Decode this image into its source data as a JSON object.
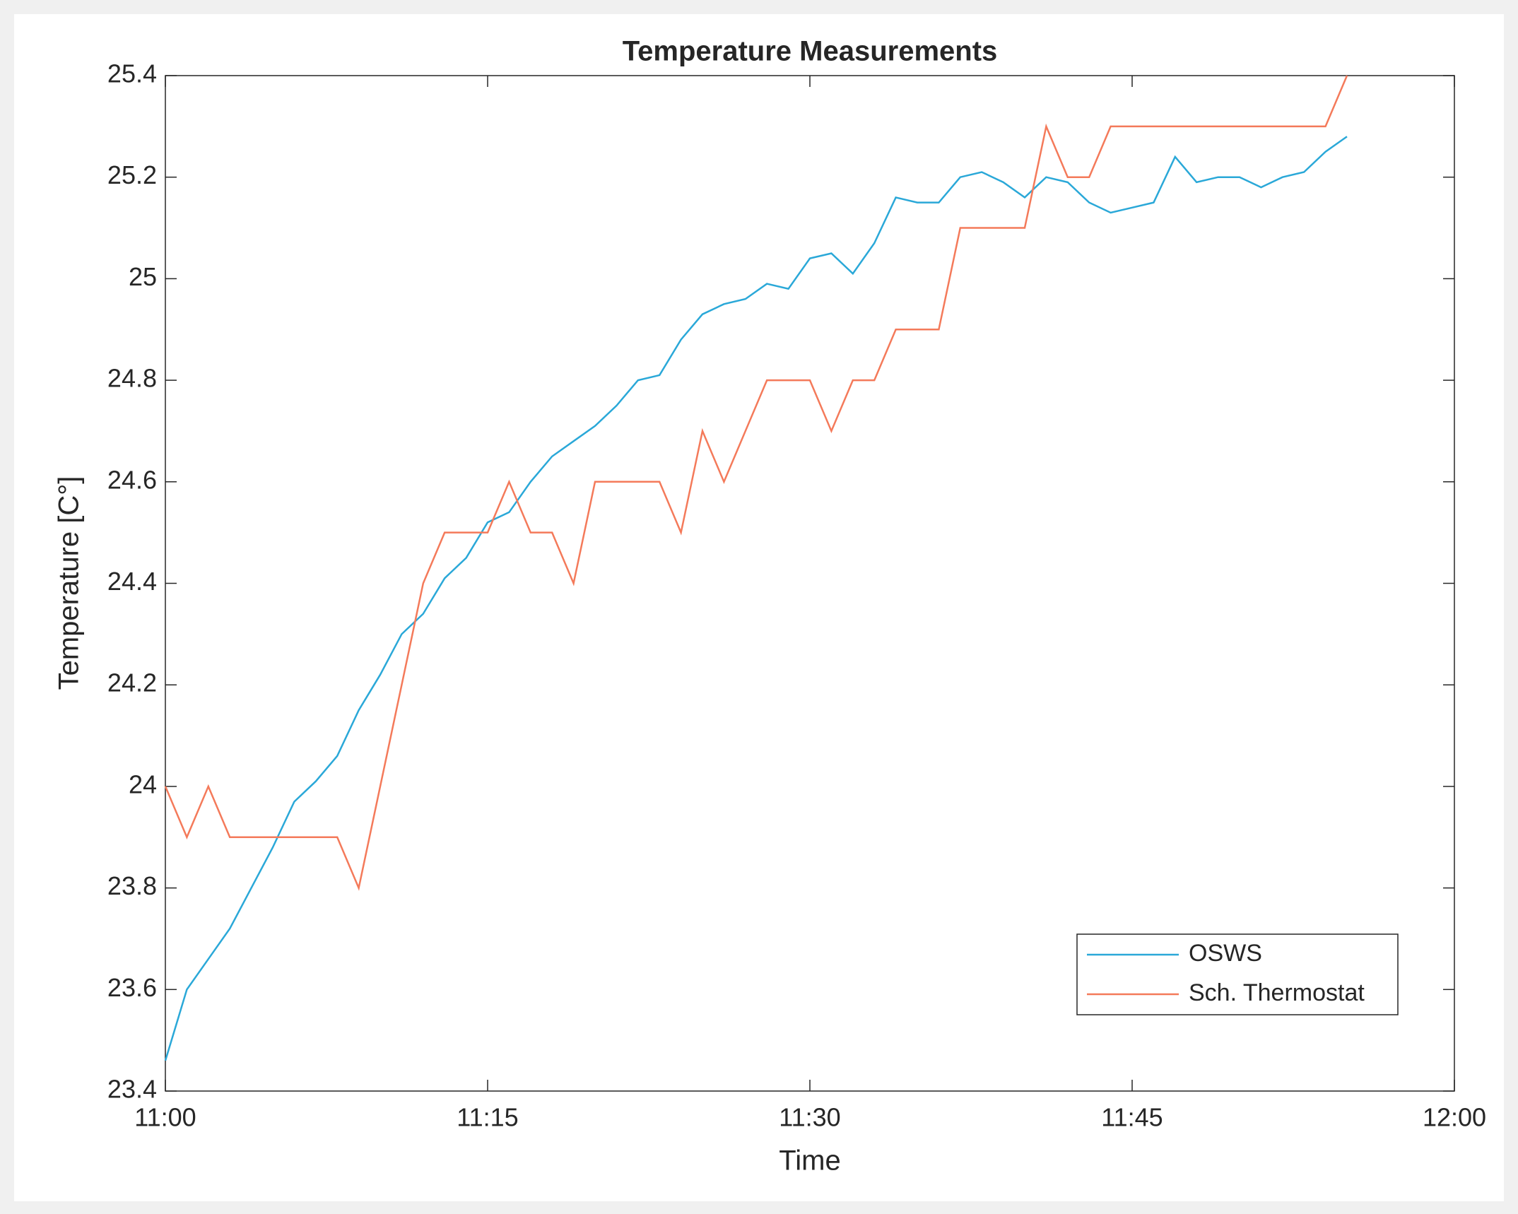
{
  "chart_data": {
    "type": "line",
    "title": "Temperature Measurements",
    "xlabel": "Time",
    "ylabel": "Temperature [C°]",
    "x": [
      "11:00",
      "11:01",
      "11:02",
      "11:03",
      "11:04",
      "11:05",
      "11:06",
      "11:07",
      "11:08",
      "11:09",
      "11:10",
      "11:11",
      "11:12",
      "11:13",
      "11:14",
      "11:15",
      "11:16",
      "11:17",
      "11:18",
      "11:19",
      "11:20",
      "11:21",
      "11:22",
      "11:23",
      "11:24",
      "11:25",
      "11:26",
      "11:27",
      "11:28",
      "11:29",
      "11:30",
      "11:31",
      "11:32",
      "11:33",
      "11:34",
      "11:35",
      "11:36",
      "11:37",
      "11:38",
      "11:39",
      "11:40",
      "11:41",
      "11:42",
      "11:43",
      "11:44",
      "11:45",
      "11:46",
      "11:47",
      "11:48",
      "11:49",
      "11:50",
      "11:51",
      "11:52",
      "11:53",
      "11:54",
      "11:55"
    ],
    "series": [
      {
        "name": "OSWS",
        "color": "#2aa8d8",
        "values": [
          23.46,
          23.6,
          23.66,
          23.72,
          23.8,
          23.88,
          23.97,
          24.01,
          24.06,
          24.15,
          24.22,
          24.3,
          24.34,
          24.41,
          24.45,
          24.52,
          24.54,
          24.6,
          24.65,
          24.68,
          24.71,
          24.75,
          24.8,
          24.81,
          24.88,
          24.93,
          24.95,
          24.96,
          24.99,
          24.98,
          25.04,
          25.05,
          25.01,
          25.07,
          25.16,
          25.15,
          25.15,
          25.2,
          25.21,
          25.19,
          25.16,
          25.2,
          25.19,
          25.15,
          25.13,
          25.14,
          25.15,
          25.24,
          25.19,
          25.2,
          25.2,
          25.18,
          25.2,
          25.21,
          25.25,
          25.28
        ]
      },
      {
        "name": "Sch. Thermostat",
        "color": "#f47a5a",
        "values": [
          24.0,
          23.9,
          24.0,
          23.9,
          23.9,
          23.9,
          23.9,
          23.9,
          23.9,
          23.8,
          24.0,
          24.2,
          24.4,
          24.5,
          24.5,
          24.5,
          24.6,
          24.5,
          24.5,
          24.4,
          24.6,
          24.6,
          24.6,
          24.6,
          24.5,
          24.7,
          24.6,
          24.7,
          24.8,
          24.8,
          24.8,
          24.7,
          24.8,
          24.8,
          24.9,
          24.9,
          24.9,
          25.1,
          25.1,
          25.1,
          25.1,
          25.3,
          25.2,
          25.2,
          25.3,
          25.3,
          25.3,
          25.3,
          25.3,
          25.3,
          25.3,
          25.3,
          25.3,
          25.3,
          25.3,
          25.4
        ]
      }
    ],
    "xlim": [
      "11:00",
      "12:00"
    ],
    "xticks": [
      "11:00",
      "11:15",
      "11:30",
      "11:45",
      "12:00"
    ],
    "ylim": [
      23.4,
      25.4
    ],
    "yticks": [
      23.4,
      23.6,
      23.8,
      24,
      24.2,
      24.4,
      24.6,
      24.8,
      25,
      25.2,
      25.4
    ],
    "grid": false,
    "legend": "southeast"
  }
}
